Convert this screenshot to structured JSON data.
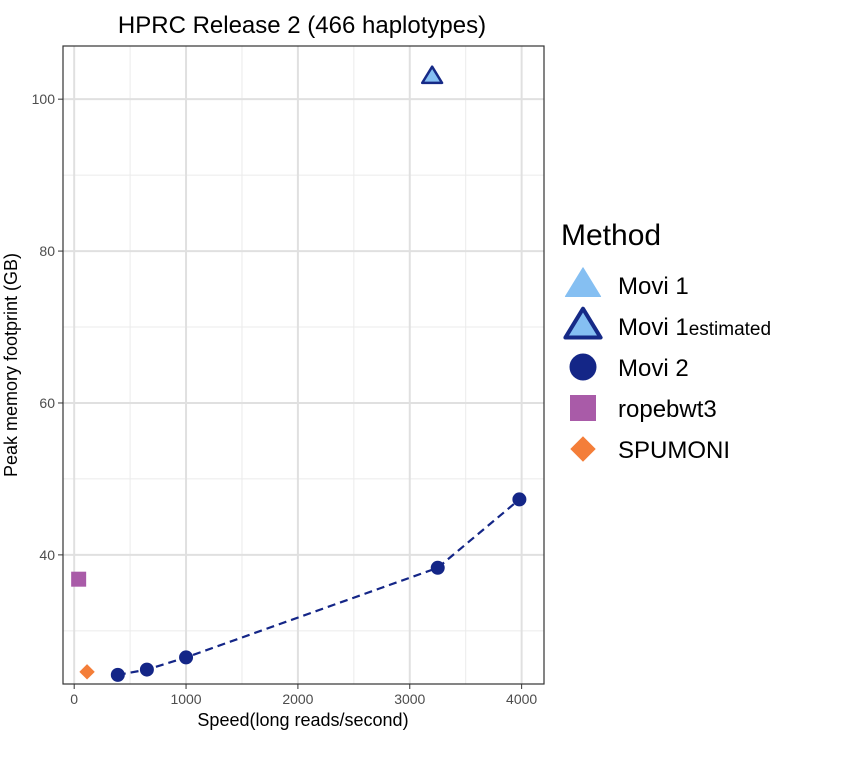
{
  "chart_data": {
    "type": "scatter",
    "title": "HPRC Release 2 (466 haplotypes)",
    "xlabel": "Speed(long reads/second)",
    "ylabel": "Peak memory footprint (GB)",
    "xlim": [
      -100,
      4200
    ],
    "ylim": [
      23,
      107
    ],
    "x_ticks": [
      0,
      1000,
      2000,
      3000,
      4000
    ],
    "y_ticks": [
      40,
      60,
      80,
      100
    ],
    "grid": true,
    "legend_title": "Method",
    "legend_position": "right",
    "series": [
      {
        "name": "Movi 1",
        "legend_suffix": "",
        "marker": "triangle",
        "fill": "#85bff2",
        "stroke": "#85bff2",
        "points": []
      },
      {
        "name": "Movi 1",
        "legend_suffix": "estimated",
        "marker": "triangle",
        "fill": "#85bff2",
        "stroke": "#162a87",
        "points": [
          {
            "x": 3200,
            "y": 103
          }
        ]
      },
      {
        "name": "Movi 2",
        "legend_suffix": "",
        "marker": "circle",
        "fill": "#142687",
        "stroke": "#142687",
        "line": "dashed",
        "points": [
          {
            "x": 390,
            "y": 24.2
          },
          {
            "x": 650,
            "y": 24.9
          },
          {
            "x": 1000,
            "y": 26.5
          },
          {
            "x": 3250,
            "y": 38.3
          },
          {
            "x": 3980,
            "y": 47.3
          }
        ]
      },
      {
        "name": "ropebwt3",
        "legend_suffix": "",
        "marker": "square",
        "fill": "#a95ba8",
        "stroke": "#a95ba8",
        "points": [
          {
            "x": 40,
            "y": 36.8
          }
        ]
      },
      {
        "name": "SPUMONI",
        "legend_suffix": "",
        "marker": "diamond",
        "fill": "#f47e39",
        "stroke": "#f47e39",
        "points": [
          {
            "x": 115,
            "y": 24.6
          }
        ]
      }
    ]
  }
}
